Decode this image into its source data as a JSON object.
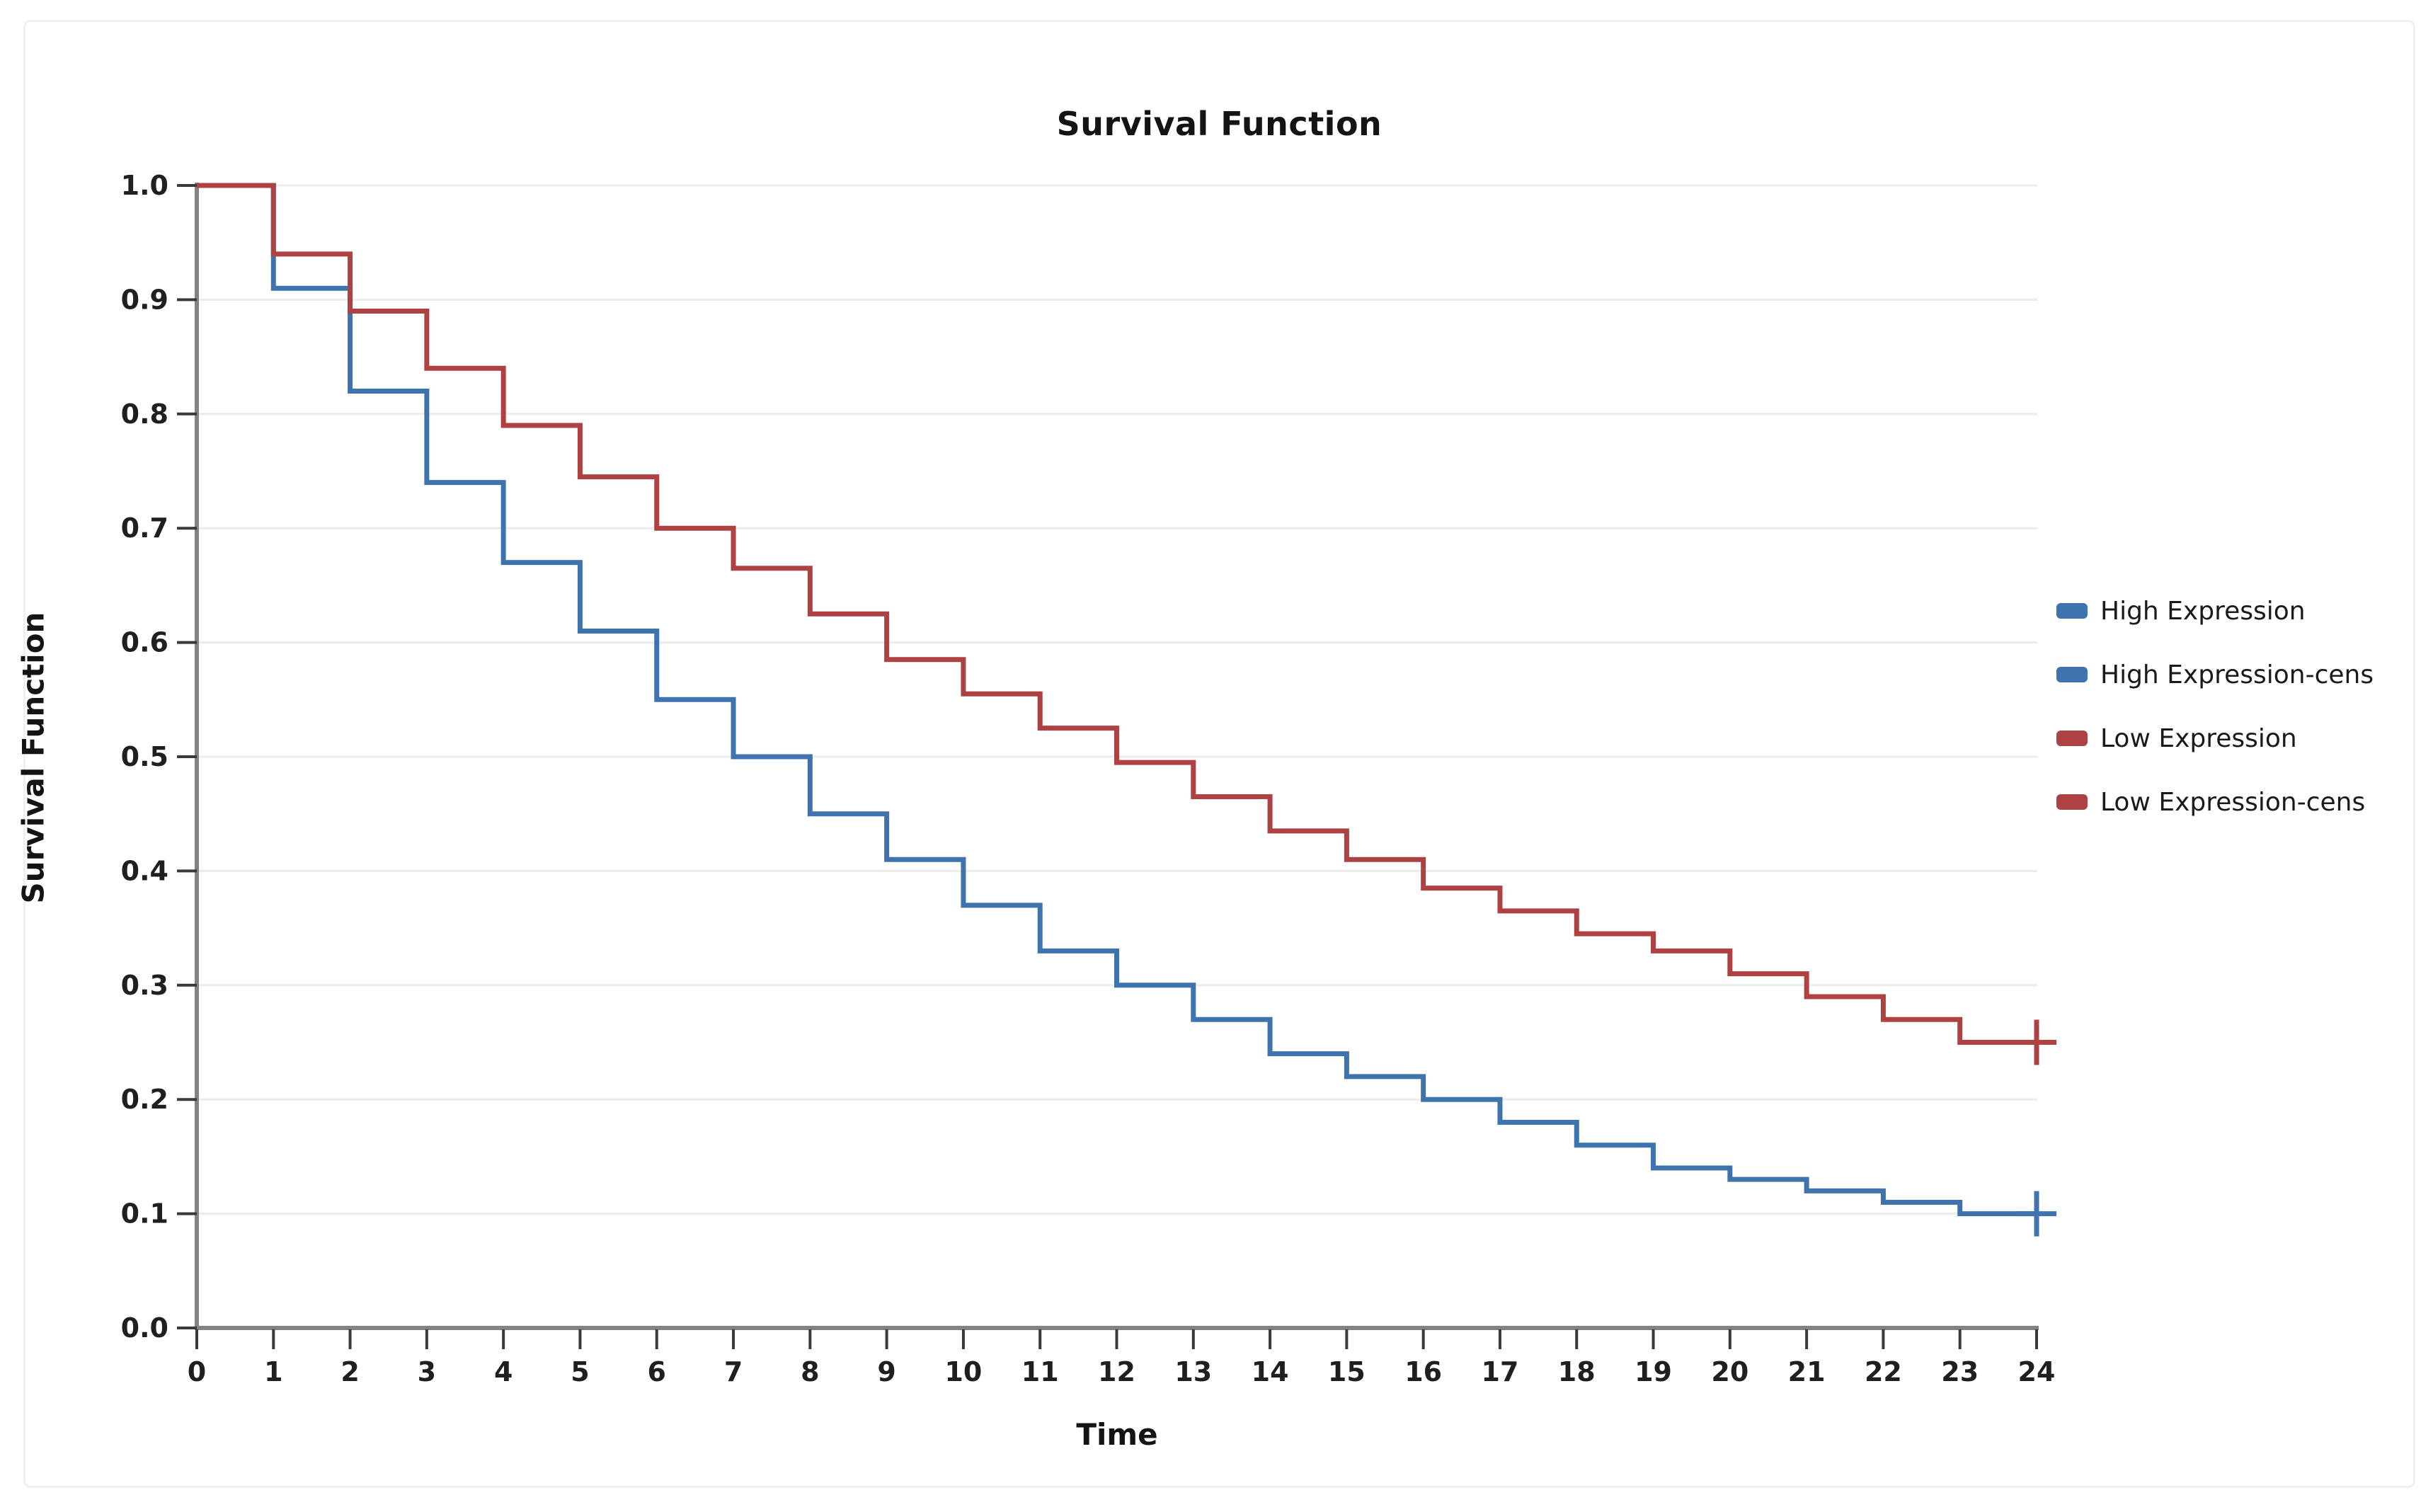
{
  "page": {
    "background": "#ffffff",
    "card_border": "#f0f0f0"
  },
  "chart_data": {
    "type": "line",
    "subtype": "step-survival-curve",
    "title": "Survival Function",
    "xlabel": "Time",
    "ylabel": "Survival Function",
    "xlim": [
      0,
      24
    ],
    "ylim": [
      0.0,
      1.0
    ],
    "grid": "horizontal",
    "legend_position": "right",
    "x_ticks": [
      "0",
      "1",
      "2",
      "3",
      "4",
      "5",
      "6",
      "7",
      "8",
      "9",
      "10",
      "11",
      "12",
      "13",
      "14",
      "15",
      "16",
      "17",
      "18",
      "19",
      "20",
      "21",
      "22",
      "23",
      "24"
    ],
    "y_ticks": [
      "0.0",
      "0.1",
      "0.2",
      "0.3",
      "0.4",
      "0.5",
      "0.6",
      "0.7",
      "0.8",
      "0.9",
      "1.0"
    ],
    "time": [
      0,
      1,
      2,
      3,
      4,
      5,
      6,
      7,
      8,
      9,
      10,
      11,
      12,
      13,
      14,
      15,
      16,
      17,
      18,
      19,
      20,
      21,
      22,
      23,
      24
    ],
    "series": [
      {
        "name": "High Expression",
        "color": "#3f73ae",
        "survival": [
          1.0,
          0.91,
          0.82,
          0.74,
          0.67,
          0.61,
          0.55,
          0.5,
          0.45,
          0.41,
          0.37,
          0.33,
          0.3,
          0.27,
          0.24,
          0.22,
          0.2,
          0.18,
          0.16,
          0.14,
          0.13,
          0.12,
          0.11,
          0.1,
          0.1
        ],
        "censored_times": [
          24
        ]
      },
      {
        "name": "Low Expression",
        "color": "#ae4141",
        "survival": [
          1.0,
          0.94,
          0.89,
          0.84,
          0.79,
          0.745,
          0.7,
          0.665,
          0.625,
          0.585,
          0.555,
          0.525,
          0.495,
          0.465,
          0.435,
          0.41,
          0.385,
          0.365,
          0.345,
          0.33,
          0.31,
          0.29,
          0.27,
          0.25,
          0.25
        ],
        "censored_times": [
          24
        ]
      }
    ],
    "legend": [
      {
        "label": "High Expression",
        "color": "#3f73ae"
      },
      {
        "label": "High Expression-cens",
        "color": "#3f73ae"
      },
      {
        "label": "Low Expression",
        "color": "#ae4141"
      },
      {
        "label": "Low Expression-cens",
        "color": "#ae4141"
      }
    ],
    "colors": {
      "grid": "#ececec",
      "axis": "#838383",
      "tick": "#3a3a3a",
      "text": "#1f1f1f"
    }
  }
}
